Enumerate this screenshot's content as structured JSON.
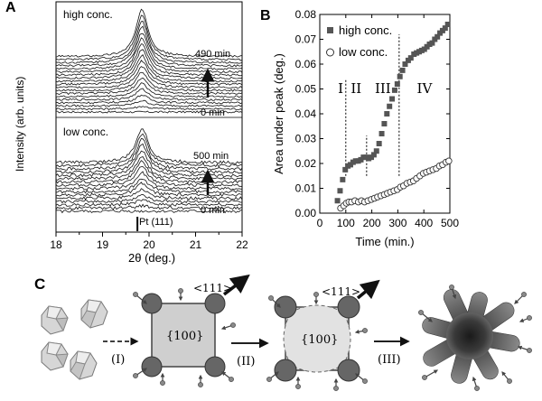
{
  "panel_a": {
    "letter": "A",
    "high_label": "high conc.",
    "high_time_top": "490 min",
    "high_time_bottom": "0 min",
    "low_label": "low conc.",
    "low_time_top": "500 min",
    "low_time_bottom": "0 min",
    "reference_label": "Pt (111)",
    "ylabel": "Intensity (arb. units)",
    "xlabel": "2θ (deg.)",
    "x_ticks": [
      "18",
      "19",
      "20",
      "21",
      "22"
    ]
  },
  "panel_b": {
    "letter": "B",
    "stage_labels": [
      "I",
      "II",
      "III",
      "IV"
    ],
    "legend_high": "high conc.",
    "legend_low": "low conc.",
    "marker_colors": {
      "high": "#555555",
      "low": "#ffffff"
    }
  },
  "panel_c": {
    "letter": "C",
    "face_label_1": "{100}",
    "face_label_2": "{100}",
    "direction_label_1": "<111>",
    "direction_label_2": "<111>",
    "step_labels": [
      "(I)",
      "(II)",
      "(III)"
    ]
  },
  "chart_data": [
    {
      "type": "line",
      "title": "",
      "xlabel": "2θ (deg.)",
      "ylabel": "Intensity (arb. units)",
      "xlim": [
        18,
        22
      ],
      "x_ticks": [
        18,
        19,
        20,
        21,
        22
      ],
      "peak_position_deg": 19.85,
      "reference_line_deg": 19.75,
      "series": [
        {
          "name": "high conc.",
          "n_traces": 19,
          "time_range_min": [
            0,
            490
          ]
        },
        {
          "name": "low conc.",
          "n_traces": 16,
          "time_range_min": [
            0,
            500
          ]
        }
      ]
    },
    {
      "type": "scatter",
      "title": "",
      "xlabel": "Time (min.)",
      "ylabel": "Area under peak (deg.)",
      "xlim": [
        0,
        500
      ],
      "ylim": [
        0,
        0.08
      ],
      "x_ticks": [
        0,
        100,
        200,
        300,
        400,
        500
      ],
      "y_ticks": [
        "0.00",
        "0.01",
        "0.02",
        "0.03",
        "0.04",
        "0.05",
        "0.06",
        "0.07",
        "0.08"
      ],
      "stage_boundaries": [
        100,
        180,
        305
      ],
      "legend": "top-left",
      "series": [
        {
          "name": "high conc.",
          "marker": "filled-square",
          "x": [
            68,
            78,
            88,
            98,
            108,
            118,
            128,
            138,
            148,
            158,
            168,
            178,
            188,
            198,
            208,
            218,
            228,
            238,
            248,
            258,
            268,
            278,
            288,
            298,
            308,
            318,
            328,
            340,
            350,
            362,
            372,
            382,
            392,
            402,
            412,
            422,
            432,
            442,
            452,
            462,
            472,
            482,
            492
          ],
          "y": [
            0.005,
            0.009,
            0.0135,
            0.0175,
            0.019,
            0.0195,
            0.0205,
            0.021,
            0.021,
            0.0215,
            0.0225,
            0.0225,
            0.022,
            0.0225,
            0.0235,
            0.025,
            0.028,
            0.032,
            0.036,
            0.04,
            0.043,
            0.046,
            0.0495,
            0.052,
            0.055,
            0.0575,
            0.06,
            0.0615,
            0.0625,
            0.064,
            0.0645,
            0.065,
            0.0655,
            0.066,
            0.067,
            0.068,
            0.0685,
            0.07,
            0.071,
            0.0725,
            0.0735,
            0.0745,
            0.076
          ]
        },
        {
          "name": "low conc.",
          "marker": "open-circle",
          "x": [
            80,
            92,
            102,
            112,
            122,
            135,
            148,
            160,
            172,
            185,
            198,
            210,
            222,
            235,
            248,
            260,
            272,
            285,
            298,
            310,
            322,
            335,
            348,
            360,
            372,
            385,
            398,
            410,
            422,
            435,
            448,
            460,
            472,
            485,
            496
          ],
          "y": [
            0.002,
            0.003,
            0.004,
            0.0045,
            0.0045,
            0.005,
            0.0045,
            0.005,
            0.0045,
            0.005,
            0.0055,
            0.006,
            0.0065,
            0.007,
            0.0075,
            0.008,
            0.0085,
            0.009,
            0.0095,
            0.0105,
            0.011,
            0.012,
            0.0125,
            0.013,
            0.014,
            0.015,
            0.016,
            0.0165,
            0.017,
            0.0175,
            0.018,
            0.019,
            0.0195,
            0.0205,
            0.021
          ]
        }
      ]
    }
  ]
}
